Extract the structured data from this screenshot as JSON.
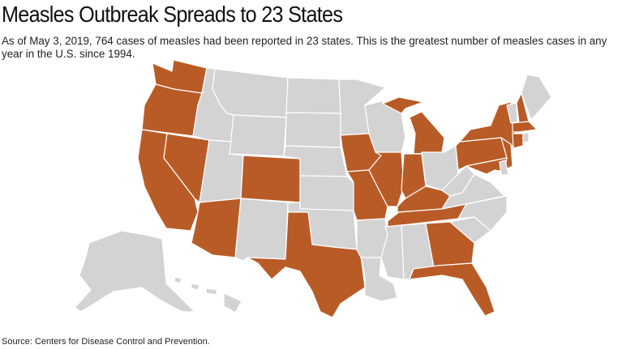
{
  "header": {
    "title": "Measles Outbreak Spreads to 23 States",
    "subtitle": "As of May 3, 2019, 764 cases of measles had been reported in 23 states. This is the greatest number of measles cases in any year in the U.S. since 1994."
  },
  "map": {
    "highlight_color": "#b95b26",
    "base_color": "#d3d3d3"
  },
  "source": "Source: Centers for Disease Control and Prevention."
}
